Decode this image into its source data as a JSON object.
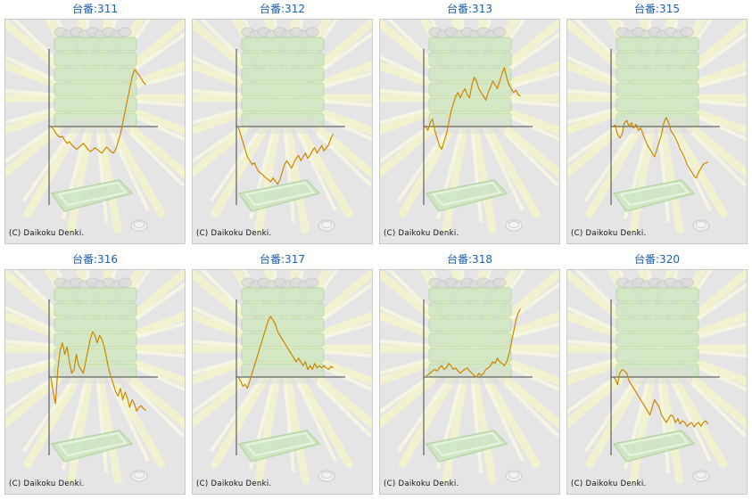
{
  "chart_data": [
    {
      "type": "line",
      "title": "台番:311",
      "copyright": "(C) Daikoku Denki.",
      "values": [
        0,
        -0.03,
        -0.08,
        -0.12,
        -0.14,
        -0.13,
        -0.18,
        -0.22,
        -0.2,
        -0.24,
        -0.27,
        -0.3,
        -0.28,
        -0.25,
        -0.22,
        -0.26,
        -0.3,
        -0.33,
        -0.31,
        -0.28,
        -0.3,
        -0.33,
        -0.35,
        -0.31,
        -0.27,
        -0.3,
        -0.33,
        -0.35,
        -0.3,
        -0.2,
        -0.1,
        0.05,
        0.2,
        0.35,
        0.5,
        0.65,
        0.75,
        0.72,
        0.68,
        0.63,
        0.58,
        0.55
      ]
    },
    {
      "type": "line",
      "title": "台番:312",
      "copyright": "(C) Daikoku Denki.",
      "values": [
        0,
        -0.1,
        -0.2,
        -0.3,
        -0.4,
        -0.45,
        -0.5,
        -0.48,
        -0.55,
        -0.6,
        -0.62,
        -0.65,
        -0.68,
        -0.7,
        -0.73,
        -0.68,
        -0.72,
        -0.76,
        -0.7,
        -0.6,
        -0.5,
        -0.45,
        -0.5,
        -0.55,
        -0.48,
        -0.42,
        -0.38,
        -0.45,
        -0.4,
        -0.35,
        -0.42,
        -0.38,
        -0.32,
        -0.28,
        -0.35,
        -0.3,
        -0.25,
        -0.32,
        -0.28,
        -0.24,
        -0.15,
        -0.1
      ]
    },
    {
      "type": "line",
      "title": "台番:313",
      "copyright": "(C) Daikoku Denki.",
      "values": [
        0,
        -0.05,
        0.05,
        0.1,
        -0.05,
        -0.15,
        -0.25,
        -0.3,
        -0.2,
        -0.1,
        0.05,
        0.2,
        0.3,
        0.4,
        0.45,
        0.38,
        0.45,
        0.5,
        0.42,
        0.38,
        0.55,
        0.65,
        0.6,
        0.5,
        0.45,
        0.4,
        0.35,
        0.45,
        0.52,
        0.6,
        0.55,
        0.5,
        0.6,
        0.7,
        0.78,
        0.65,
        0.55,
        0.5,
        0.45,
        0.48,
        0.42,
        0.4
      ]
    },
    {
      "type": "line",
      "title": "台番:315",
      "copyright": "(C) Daikoku Denki.",
      "values": [
        0,
        0.02,
        -0.1,
        -0.15,
        -0.1,
        0.05,
        0.08,
        0,
        0.05,
        -0.02,
        0.03,
        -0.05,
        -0.02,
        -0.1,
        -0.18,
        -0.25,
        -0.3,
        -0.35,
        -0.4,
        -0.3,
        -0.2,
        -0.1,
        0.05,
        0.12,
        0.05,
        -0.05,
        -0.1,
        -0.15,
        -0.22,
        -0.3,
        -0.35,
        -0.42,
        -0.5,
        -0.55,
        -0.6,
        -0.65,
        -0.68,
        -0.6,
        -0.55,
        -0.5,
        -0.48,
        -0.47
      ]
    },
    {
      "type": "line",
      "title": "台番:316",
      "copyright": "(C) Daikoku Denki.",
      "values": [
        0,
        -0.2,
        -0.35,
        0.1,
        0.35,
        0.45,
        0.3,
        0.4,
        0.2,
        0.05,
        0.1,
        0.3,
        0.15,
        0.1,
        0.05,
        0.2,
        0.35,
        0.5,
        0.6,
        0.55,
        0.45,
        0.55,
        0.5,
        0.4,
        0.25,
        0.1,
        0,
        -0.1,
        -0.2,
        -0.25,
        -0.15,
        -0.3,
        -0.2,
        -0.28,
        -0.4,
        -0.3,
        -0.35,
        -0.45,
        -0.4,
        -0.38,
        -0.42,
        -0.44
      ]
    },
    {
      "type": "line",
      "title": "台番:317",
      "copyright": "(C) Daikoku Denki.",
      "values": [
        0,
        -0.05,
        -0.12,
        -0.1,
        -0.15,
        -0.05,
        0.05,
        0.15,
        0.25,
        0.35,
        0.45,
        0.55,
        0.65,
        0.75,
        0.8,
        0.75,
        0.7,
        0.6,
        0.55,
        0.5,
        0.45,
        0.4,
        0.35,
        0.3,
        0.25,
        0.2,
        0.25,
        0.2,
        0.15,
        0.2,
        0.1,
        0.15,
        0.1,
        0.18,
        0.12,
        0.15,
        0.12,
        0.15,
        0.12,
        0.1,
        0.14,
        0.12
      ]
    },
    {
      "type": "line",
      "title": "台番:318",
      "copyright": "(C) Daikoku Denki.",
      "values": [
        0,
        0.03,
        0.05,
        0.08,
        0.1,
        0.08,
        0.12,
        0.15,
        0.1,
        0.12,
        0.18,
        0.15,
        0.1,
        0.12,
        0.08,
        0.05,
        0.08,
        0.1,
        0.12,
        0.08,
        0.05,
        0.02,
        0,
        0.05,
        0.02,
        0.05,
        0.1,
        0.12,
        0.15,
        0.2,
        0.18,
        0.25,
        0.2,
        0.18,
        0.15,
        0.2,
        0.3,
        0.45,
        0.6,
        0.75,
        0.85,
        0.9
      ]
    },
    {
      "type": "line",
      "title": "台番:320",
      "copyright": "(C) Daikoku Denki.",
      "values": [
        0,
        -0.02,
        -0.1,
        0.05,
        0.1,
        0.08,
        0.05,
        -0.05,
        -0.1,
        -0.15,
        -0.2,
        -0.25,
        -0.3,
        -0.35,
        -0.4,
        -0.45,
        -0.5,
        -0.4,
        -0.3,
        -0.35,
        -0.4,
        -0.5,
        -0.55,
        -0.6,
        -0.55,
        -0.5,
        -0.52,
        -0.6,
        -0.55,
        -0.62,
        -0.58,
        -0.6,
        -0.65,
        -0.62,
        -0.6,
        -0.66,
        -0.62,
        -0.6,
        -0.65,
        -0.6,
        -0.58,
        -0.62
      ]
    }
  ],
  "colors": {
    "line": "#cc8800",
    "panel_bg": "#e5e5e5",
    "title": "#1f5fa8",
    "axis": "#444444"
  }
}
